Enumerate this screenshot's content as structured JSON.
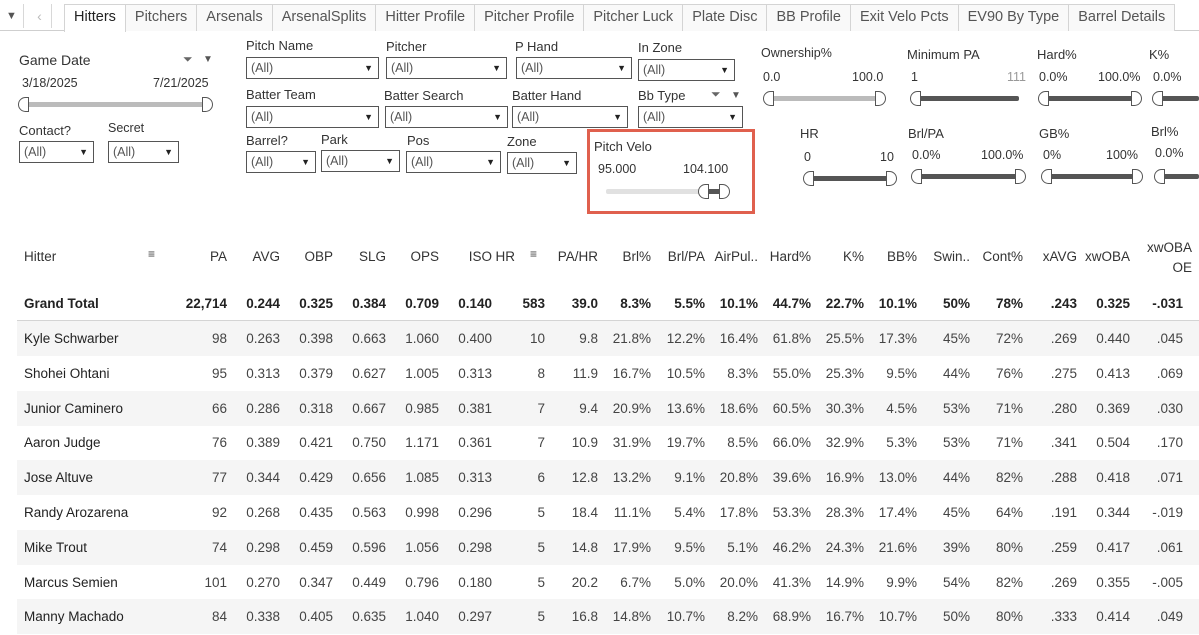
{
  "tabs": [
    "Hitters",
    "Pitchers",
    "Arsenals",
    "ArsenalSplits",
    "Hitter Profile",
    "Pitcher Profile",
    "Pitcher Luck",
    "Plate Disc",
    "BB Profile",
    "Exit Velo Pcts",
    "EV90 By Type",
    "Barrel Details"
  ],
  "active_tab": "Hitters",
  "game_date": {
    "label": "Game Date",
    "start": "3/18/2025",
    "end": "7/21/2025"
  },
  "contact": {
    "label": "Contact?",
    "value": "(All)"
  },
  "secret": {
    "label": "Secret",
    "value": "(All)"
  },
  "pitch_name": {
    "label": "Pitch Name",
    "value": "(All)"
  },
  "pitcher": {
    "label": "Pitcher",
    "value": "(All)"
  },
  "p_hand": {
    "label": "P Hand",
    "value": "(All)"
  },
  "in_zone": {
    "label": "In Zone",
    "value": "(All)"
  },
  "batter_team": {
    "label": "Batter Team",
    "value": "(All)"
  },
  "batter_search": {
    "label": "Batter Search",
    "value": "(All)"
  },
  "batter_hand": {
    "label": "Batter Hand",
    "value": "(All)"
  },
  "bb_type": {
    "label": "Bb Type",
    "value": "(All)"
  },
  "barrel": {
    "label": "Barrel?",
    "value": "(All)"
  },
  "park": {
    "label": "Park",
    "value": "(All)"
  },
  "pos": {
    "label": "Pos",
    "value": "(All)"
  },
  "zone": {
    "label": "Zone",
    "value": "(All)"
  },
  "pitch_velo": {
    "label": "Pitch Velo",
    "min": "95.000",
    "max": "104.100"
  },
  "ownership": {
    "label": "Ownership%",
    "min": "0.0",
    "max": "100.0"
  },
  "min_pa": {
    "label": "Minimum PA",
    "min": "1",
    "max": "111"
  },
  "hard": {
    "label": "Hard%",
    "min": "0.0%",
    "max": "100.0%"
  },
  "k": {
    "label": "K%",
    "min": "0.0%"
  },
  "hr": {
    "label": "HR",
    "min": "0",
    "max": "10"
  },
  "brl_pa": {
    "label": "Brl/PA",
    "min": "0.0%",
    "max": "100.0%"
  },
  "gb": {
    "label": "GB%",
    "min": "0%",
    "max": "100%"
  },
  "brl": {
    "label": "Brl%",
    "min": "0.0%"
  },
  "columns": [
    "Hitter",
    "PA",
    "AVG",
    "OBP",
    "SLG",
    "OPS",
    "ISO",
    "HR",
    "PA/HR",
    "Brl%",
    "Brl/PA",
    "AirPul..",
    "Hard%",
    "K%",
    "BB%",
    "Swin..",
    "Cont%",
    "xAVG",
    "xwOBA"
  ],
  "last_column": {
    "line1": "xwOBA",
    "line2": "OE"
  },
  "grand_total": [
    "Grand Total",
    "22,714",
    "0.244",
    "0.325",
    "0.384",
    "0.709",
    "0.140",
    "583",
    "39.0",
    "8.3%",
    "5.5%",
    "10.1%",
    "44.7%",
    "22.7%",
    "10.1%",
    "50%",
    "78%",
    ".243",
    "0.325",
    "-.031"
  ],
  "rows": [
    [
      "Kyle Schwarber",
      "98",
      "0.263",
      "0.398",
      "0.663",
      "1.060",
      "0.400",
      "10",
      "9.8",
      "21.8%",
      "12.2%",
      "16.4%",
      "61.8%",
      "25.5%",
      "17.3%",
      "45%",
      "72%",
      ".269",
      "0.440",
      ".045"
    ],
    [
      "Shohei Ohtani",
      "95",
      "0.313",
      "0.379",
      "0.627",
      "1.005",
      "0.313",
      "8",
      "11.9",
      "16.7%",
      "10.5%",
      "8.3%",
      "55.0%",
      "25.3%",
      "9.5%",
      "44%",
      "76%",
      ".275",
      "0.413",
      ".069"
    ],
    [
      "Junior Caminero",
      "66",
      "0.286",
      "0.318",
      "0.667",
      "0.985",
      "0.381",
      "7",
      "9.4",
      "20.9%",
      "13.6%",
      "18.6%",
      "60.5%",
      "30.3%",
      "4.5%",
      "53%",
      "71%",
      ".280",
      "0.369",
      ".030"
    ],
    [
      "Aaron Judge",
      "76",
      "0.389",
      "0.421",
      "0.750",
      "1.171",
      "0.361",
      "7",
      "10.9",
      "31.9%",
      "19.7%",
      "8.5%",
      "66.0%",
      "32.9%",
      "5.3%",
      "53%",
      "71%",
      ".341",
      "0.504",
      ".170"
    ],
    [
      "Jose Altuve",
      "77",
      "0.344",
      "0.429",
      "0.656",
      "1.085",
      "0.313",
      "6",
      "12.8",
      "13.2%",
      "9.1%",
      "20.8%",
      "39.6%",
      "16.9%",
      "13.0%",
      "44%",
      "82%",
      ".288",
      "0.418",
      ".071"
    ],
    [
      "Randy Arozarena",
      "92",
      "0.268",
      "0.435",
      "0.563",
      "0.998",
      "0.296",
      "5",
      "18.4",
      "11.1%",
      "5.4%",
      "17.8%",
      "53.3%",
      "28.3%",
      "17.4%",
      "45%",
      "64%",
      ".191",
      "0.344",
      "-.019"
    ],
    [
      "Mike Trout",
      "74",
      "0.298",
      "0.459",
      "0.596",
      "1.056",
      "0.298",
      "5",
      "14.8",
      "17.9%",
      "9.5%",
      "5.1%",
      "46.2%",
      "24.3%",
      "21.6%",
      "39%",
      "80%",
      ".259",
      "0.417",
      ".061"
    ],
    [
      "Marcus Semien",
      "101",
      "0.270",
      "0.347",
      "0.449",
      "0.796",
      "0.180",
      "5",
      "20.2",
      "6.7%",
      "5.0%",
      "20.0%",
      "41.3%",
      "14.9%",
      "9.9%",
      "54%",
      "82%",
      ".269",
      "0.355",
      "-.005"
    ],
    [
      "Manny Machado",
      "84",
      "0.338",
      "0.405",
      "0.635",
      "1.040",
      "0.297",
      "5",
      "16.8",
      "14.8%",
      "10.7%",
      "8.2%",
      "68.9%",
      "16.7%",
      "10.7%",
      "50%",
      "80%",
      ".333",
      "0.414",
      ".049"
    ]
  ]
}
